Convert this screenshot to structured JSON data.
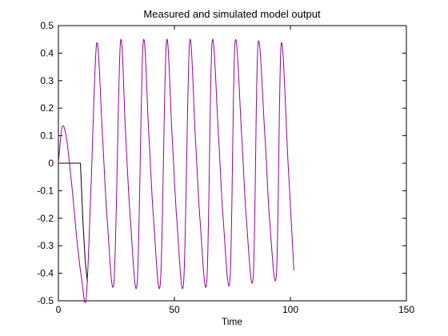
{
  "chart_data": {
    "type": "line",
    "title": "Measured and simulated model output",
    "xlabel": "Time",
    "ylabel": "",
    "xlim": [
      0,
      150
    ],
    "ylim": [
      -0.5,
      0.5
    ],
    "xticks": [
      0,
      50,
      100,
      150
    ],
    "yticks": [
      0.5,
      0.4,
      0.3,
      0.2,
      0.1,
      0,
      -0.1,
      -0.2,
      -0.3,
      -0.4,
      -0.5
    ],
    "xtick_labels": [
      "0",
      "50",
      "100",
      "150"
    ],
    "ytick_labels": [
      "0.5",
      "0.4",
      "0.3",
      "0.2",
      "0.1",
      "0",
      "-0.1",
      "-0.2",
      "-0.3",
      "-0.4",
      "-0.5"
    ],
    "grid": false,
    "legend": "none",
    "series": [
      {
        "color": "#000000",
        "x": [
          0,
          2,
          4,
          6,
          8,
          9.5,
          10.5,
          11.5,
          12.5
        ],
        "y": [
          0,
          0,
          0,
          0,
          0,
          0,
          -0.2,
          -0.35,
          -0.43
        ]
      },
      {
        "color": "#990099",
        "x": [
          0,
          1.6,
          3.5,
          6,
          8,
          10,
          12,
          14,
          16.5,
          19,
          21,
          24,
          26.7,
          29,
          31,
          34,
          36.5,
          39,
          41,
          44,
          46.5,
          49,
          51,
          54,
          56.5,
          59,
          61,
          64,
          66.2,
          69,
          71,
          74,
          76.1,
          79,
          81,
          84,
          86,
          89,
          91,
          94,
          96,
          99,
          101.5
        ],
        "y": [
          0,
          0.13,
          0.09,
          -0.1,
          -0.28,
          -0.42,
          -0.49,
          -0.1,
          0.435,
          0.1,
          -0.2,
          -0.425,
          0.435,
          0.1,
          -0.2,
          -0.43,
          0.435,
          0.1,
          -0.2,
          -0.43,
          0.435,
          0.1,
          -0.2,
          -0.43,
          0.435,
          0.1,
          -0.2,
          -0.425,
          0.435,
          0.1,
          -0.2,
          -0.42,
          0.435,
          0.1,
          -0.2,
          -0.41,
          0.43,
          0.1,
          -0.2,
          -0.4,
          0.43,
          0.0,
          -0.39
        ]
      }
    ]
  }
}
